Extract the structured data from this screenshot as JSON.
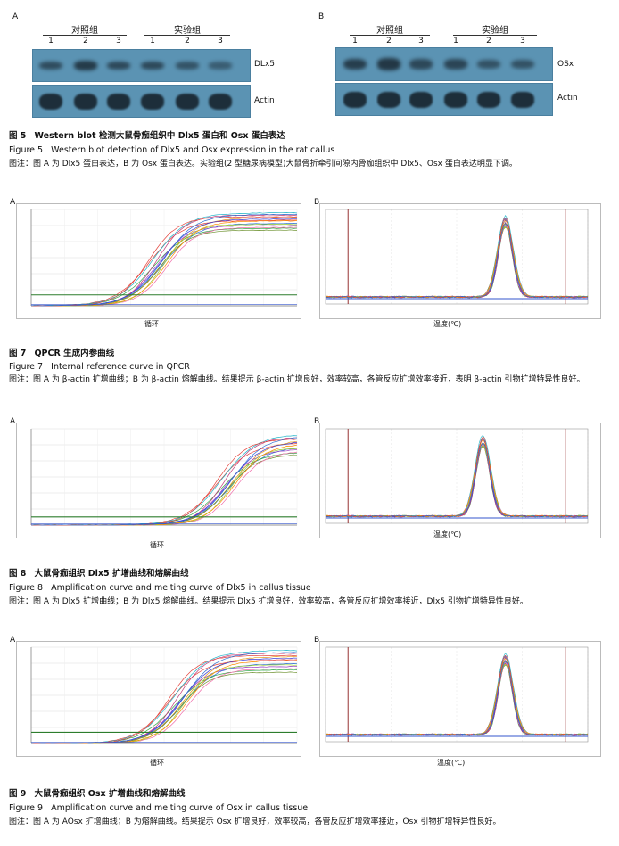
{
  "fig5": {
    "panelA": {
      "letter": "A",
      "group_control": "对照组",
      "group_exp": "实验组",
      "lanes": [
        "1",
        "2",
        "3",
        "1",
        "2",
        "3"
      ],
      "band_label_1": "DLx5",
      "band_label_2": "Actin",
      "band1_intensity": [
        0.55,
        0.8,
        0.6,
        0.6,
        0.45,
        0.3
      ],
      "band2_intensity": [
        1,
        1,
        1,
        1,
        1,
        1
      ]
    },
    "panelB": {
      "letter": "B",
      "group_control": "对照组",
      "group_exp": "实验组",
      "lanes": [
        "1",
        "2",
        "3",
        "1",
        "2",
        "3"
      ],
      "band_label_1": "OSx",
      "band_label_2": "Actin",
      "band1_intensity": [
        0.75,
        0.85,
        0.6,
        0.65,
        0.45,
        0.45
      ],
      "band2_intensity": [
        1,
        1,
        1,
        1,
        1,
        1
      ]
    },
    "caption_zh_num": "图 5",
    "caption_zh": "Western blot 检测大鼠骨痂组织中 Dlx5 蛋白和 Osx 蛋白表达",
    "caption_en_num": "Figure 5",
    "caption_en": "Western blot detection of Dlx5 and Osx expression in the rat callus",
    "note": "图注：图 A 为 Dlx5 蛋白表达，B 为 Osx 蛋白表达。实验组(2 型糖尿病模型)大鼠骨折牵引间隙内骨痂组织中 Dlx5、Osx 蛋白表达明显下调。"
  },
  "fig7": {
    "panelA_letter": "A",
    "panelB_letter": "B",
    "xlabelA": "循环",
    "xlabelB": "温度(℃)",
    "caption_zh_num": "图 7",
    "caption_zh": "QPCR 生成内参曲线",
    "caption_en_num": "Figure 7",
    "caption_en": "Internal reference curve in QPCR",
    "note": "图注：图 A 为 β-actin 扩增曲线；B 为 β-actin 熔解曲线。结果提示 β-actin 扩增良好，效率较高，各管反应扩增效率接近，表明 β-actin 引物扩增特异性良好。"
  },
  "fig8": {
    "panelA_letter": "A",
    "panelB_letter": "B",
    "xlabelA": "循环",
    "xlabelB": "温度(℃)",
    "caption_zh_num": "图 8",
    "caption_zh": "大鼠骨痂组织 Dlx5 扩增曲线和熔解曲线",
    "caption_en_num": "Figure 8",
    "caption_en": "Amplification curve and melting curve of Dlx5 in callus tissue",
    "note": "图注：图 A 为 Dlx5 扩增曲线；B 为 Dlx5 熔解曲线。结果提示 Dlx5 扩增良好，效率较高，各管反应扩增效率接近，Dlx5 引物扩增特异性良好。"
  },
  "fig9": {
    "panelA_letter": "A",
    "panelB_letter": "B",
    "xlabelA": "循环",
    "xlabelB": "温度(℃)",
    "caption_zh_num": "图 9",
    "caption_zh": "大鼠骨痂组织 Osx 扩增曲线和熔解曲线",
    "caption_en_num": "Figure 9",
    "caption_en": "Amplification curve and melting curve of Osx in callus tissue",
    "note": "图注：图 A 为 AOsx 扩增曲线；B 为熔解曲线。结果提示 Osx 扩增良好，效率较高，各管反应扩增效率接近，Osx 引物扩增特异性良好。"
  },
  "chart_data": [
    {
      "type": "line",
      "id": "fig7A",
      "x_range": [
        1,
        40
      ],
      "threshold": 34,
      "ylim": [
        0,
        300
      ],
      "plateau": [
        230,
        290
      ],
      "midpoint": [
        18,
        21
      ]
    },
    {
      "type": "line",
      "id": "fig7B",
      "x_range": [
        60,
        95
      ],
      "peak_x": 84,
      "peak_y": 1.0
    },
    {
      "type": "line",
      "id": "fig8A",
      "x_range": [
        1,
        40
      ],
      "threshold": 22,
      "ylim": [
        0,
        260
      ],
      "plateau": [
        185,
        245
      ],
      "midpoint": [
        28,
        31
      ]
    },
    {
      "type": "line",
      "id": "fig8B",
      "x_range": [
        60,
        95
      ],
      "peak_x": 81,
      "peak_y": 1.0
    },
    {
      "type": "line",
      "id": "fig9A",
      "x_range": [
        1,
        40
      ],
      "threshold": 35,
      "ylim": [
        0,
        300
      ],
      "plateau": [
        215,
        290
      ],
      "midpoint": [
        21,
        24
      ]
    },
    {
      "type": "line",
      "id": "fig9B",
      "x_range": [
        60,
        95
      ],
      "peak_x": 84,
      "peak_y": 1.0
    }
  ],
  "colors": {
    "curves": [
      "#e4423b",
      "#2f6fd1",
      "#30a848",
      "#e39a1f",
      "#9b3fc4",
      "#1fb4c8",
      "#c23b7a",
      "#6a8f2a",
      "#f06aa8",
      "#3b3bd6",
      "#9acd32",
      "#ff8c00"
    ],
    "threshold": "#2d7d2d",
    "baseline": "#3355cc",
    "marker": "#8b1c1c"
  }
}
